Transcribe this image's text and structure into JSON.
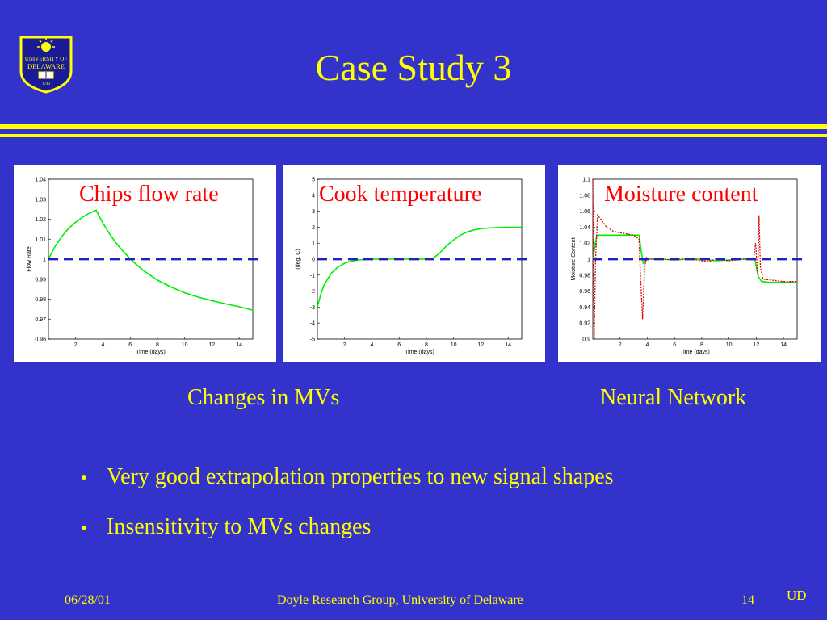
{
  "slide": {
    "title": "Case Study 3",
    "logo_text": [
      "UNIVERSITY OF",
      "DELAWARE",
      "1743"
    ],
    "captions": {
      "left": "Changes in MVs",
      "right": "Neural Network"
    },
    "bullets": [
      {
        "marker": "•",
        "text": "Very good extrapolation properties to new signal shapes"
      },
      {
        "marker": "•",
        "text": "Insensitivity to MVs changes"
      }
    ],
    "footer": {
      "date": "06/28/01",
      "center": "Doyle Research Group, University of Delaware",
      "page": "14",
      "mark": "UD"
    },
    "colors": {
      "background": "#3333cc",
      "text": "#ffff00",
      "plot_title": "#ff0000",
      "trace_green": "#00ee00",
      "trace_red": "#dd0000",
      "reference": "#2222bb"
    }
  },
  "chart_data": [
    {
      "type": "line",
      "title": "Chips flow rate",
      "xlabel": "Time (days)",
      "ylabel": "Flow Rate",
      "xlim": [
        0,
        15
      ],
      "ylim": [
        0.96,
        1.04
      ],
      "xticks": [
        2,
        4,
        6,
        8,
        10,
        12,
        14
      ],
      "yticks": [
        0.96,
        0.97,
        0.98,
        0.99,
        1,
        1.01,
        1.02,
        1.03,
        1.04
      ],
      "ytick_labels": [
        "0.96",
        "0.97",
        "0.98",
        "0.99",
        "1",
        "1.01",
        "1.02",
        "1.03",
        "1.04"
      ],
      "reference": {
        "y": 1,
        "style": "dashed"
      },
      "series": [
        {
          "color": "#00ee00",
          "x": [
            0,
            0.5,
            1,
            1.5,
            2,
            2.5,
            3,
            3.5,
            4,
            4.5,
            5,
            5.5,
            6,
            6.5,
            7,
            8,
            9,
            10,
            11,
            12,
            13,
            14,
            15
          ],
          "y": [
            1.0,
            1.0065,
            1.0115,
            1.0155,
            1.0185,
            1.021,
            1.023,
            1.0245,
            1.018,
            1.0125,
            1.0078,
            1.0038,
            1.0002,
            0.997,
            0.9942,
            0.9895,
            0.986,
            0.9832,
            0.981,
            0.9792,
            0.9776,
            0.9762,
            0.9745
          ]
        }
      ]
    },
    {
      "type": "line",
      "title": "Cook temperature",
      "xlabel": "Time (days)",
      "ylabel": "(deg. C)",
      "xlim": [
        0,
        15
      ],
      "ylim": [
        -5,
        5
      ],
      "xticks": [
        2,
        4,
        6,
        8,
        10,
        12,
        14
      ],
      "yticks": [
        -5,
        -4,
        -3,
        -2,
        -1,
        0,
        1,
        2,
        3,
        4,
        5
      ],
      "ytick_labels": [
        "-5",
        "-4",
        "-3",
        "-2",
        "-1",
        "0",
        "1",
        "2",
        "3",
        "4",
        "5"
      ],
      "reference": {
        "y": 0,
        "style": "dashed"
      },
      "series": [
        {
          "color": "#00ee00",
          "x": [
            0,
            0.25,
            0.5,
            1,
            1.5,
            2,
            2.5,
            3,
            4,
            5,
            6,
            7,
            8,
            8.5,
            9,
            9.5,
            10,
            10.5,
            11,
            11.5,
            12,
            13,
            14,
            15
          ],
          "y": [
            -3.0,
            -2.2,
            -1.6,
            -0.9,
            -0.5,
            -0.25,
            -0.12,
            -0.05,
            0,
            0,
            0,
            0,
            0,
            0.05,
            0.4,
            0.85,
            1.2,
            1.5,
            1.7,
            1.83,
            1.91,
            1.97,
            1.99,
            2.0
          ]
        }
      ]
    },
    {
      "type": "line",
      "title": "Moisture content",
      "xlabel": "Time (days)",
      "ylabel": "Moisture Content",
      "xlim": [
        0,
        15
      ],
      "ylim": [
        0.9,
        1.1
      ],
      "xticks": [
        2,
        4,
        6,
        8,
        10,
        12,
        14
      ],
      "yticks": [
        0.9,
        0.92,
        0.94,
        0.96,
        0.98,
        1,
        1.02,
        1.04,
        1.06,
        1.08,
        1.1
      ],
      "ytick_labels": [
        "0.9",
        "0.92",
        "0.94",
        "0.96",
        "0.98",
        "1",
        "1.02",
        "1.04",
        "1.06",
        "1.08",
        "1.1"
      ],
      "reference": {
        "y": 1,
        "style": "dashed"
      },
      "series": [
        {
          "color": "#00ee00",
          "style": "solid",
          "x": [
            0,
            0.1,
            0.3,
            0.6,
            1,
            2,
            3.4,
            3.55,
            3.7,
            3.85,
            4,
            5,
            6,
            7,
            8,
            9,
            10,
            11,
            11.9,
            12,
            12.15,
            12.4,
            13,
            14,
            15
          ],
          "y": [
            1.0,
            1.01,
            1.03,
            1.03,
            1.03,
            1.03,
            1.03,
            1.01,
            0.995,
            0.998,
            1.0,
            1.0,
            0.999,
            1.0,
            1.0,
            0.998,
            0.999,
            1.0,
            1.0,
            0.99,
            0.978,
            0.972,
            0.971,
            0.971,
            0.971
          ]
        },
        {
          "color": "#dd0000",
          "style": "dotted",
          "x": [
            0,
            0.1,
            0.2,
            0.35,
            0.6,
            1,
            1.5,
            2,
            3,
            3.4,
            3.5,
            3.65,
            3.8,
            3.95,
            4.2,
            5,
            6,
            7,
            8,
            8.5,
            9,
            10,
            11,
            11.8,
            11.95,
            12.1,
            12.2,
            12.3,
            12.5,
            13,
            14,
            15
          ],
          "y": [
            1.1,
            0.9,
            1.0,
            1.055,
            1.05,
            1.04,
            1.035,
            1.033,
            1.03,
            1.025,
            0.98,
            0.925,
            0.99,
            1.002,
            1.0,
            1.0,
            0.999,
            1.001,
            0.998,
            0.997,
            1.0,
            0.998,
            1.0,
            1.0,
            1.02,
            0.98,
            1.055,
            0.99,
            0.975,
            0.974,
            0.972,
            0.972
          ]
        }
      ]
    }
  ]
}
